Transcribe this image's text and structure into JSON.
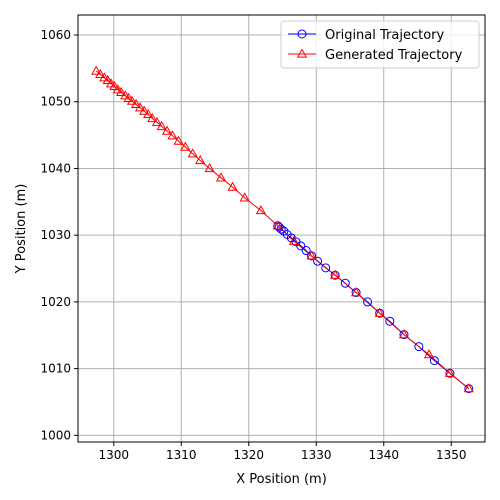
{
  "chart_data": {
    "type": "line",
    "xlabel": "X Position (m)",
    "ylabel": "Y Position (m)",
    "xlim": [
      1294.7,
      1355.0
    ],
    "ylim": [
      999.0,
      1063.0
    ],
    "xticks": [
      1300,
      1310,
      1320,
      1330,
      1340,
      1350
    ],
    "yticks": [
      1000,
      1010,
      1020,
      1030,
      1040,
      1050,
      1060
    ],
    "grid": true,
    "legend_position": "top-right",
    "series": [
      {
        "name": "Original Trajectory",
        "color": "#0000ff",
        "marker": "circle",
        "x": [
          1352.6,
          1349.8,
          1347.5,
          1345.2,
          1343.0,
          1340.9,
          1339.4,
          1337.6,
          1335.9,
          1334.3,
          1332.8,
          1331.4,
          1330.2,
          1329.3,
          1328.5,
          1327.7,
          1327.0,
          1326.3,
          1325.7,
          1325.2,
          1324.8,
          1324.5,
          1324.3
        ],
        "y": [
          1007.0,
          1009.3,
          1011.2,
          1013.3,
          1015.1,
          1017.1,
          1018.3,
          1020.0,
          1021.4,
          1022.8,
          1024.0,
          1025.1,
          1026.1,
          1026.9,
          1027.7,
          1028.4,
          1029.0,
          1029.6,
          1030.1,
          1030.6,
          1030.9,
          1031.2,
          1031.4
        ]
      },
      {
        "name": "Generated Trajectory",
        "color": "#ff0000",
        "marker": "triangle",
        "x": [
          1352.6,
          1349.8,
          1346.7,
          1343.0,
          1339.4,
          1335.9,
          1332.8,
          1329.3,
          1326.7,
          1324.3,
          1321.8,
          1319.4,
          1317.6,
          1315.9,
          1314.2,
          1312.8,
          1311.7,
          1310.6,
          1309.6,
          1308.7,
          1307.9,
          1307.1,
          1306.4,
          1305.7,
          1305.1,
          1304.5,
          1303.9,
          1303.3,
          1302.7,
          1302.2,
          1301.7,
          1301.1,
          1300.6,
          1300.1,
          1299.6,
          1299.1,
          1298.6,
          1298.0,
          1297.4
        ],
        "y": [
          1007.0,
          1009.3,
          1012.1,
          1015.1,
          1018.3,
          1021.4,
          1024.0,
          1026.9,
          1029.1,
          1031.4,
          1033.7,
          1035.6,
          1037.2,
          1038.6,
          1040.0,
          1041.2,
          1042.2,
          1043.2,
          1044.1,
          1044.9,
          1045.6,
          1046.3,
          1046.9,
          1047.5,
          1048.1,
          1048.6,
          1049.1,
          1049.6,
          1050.1,
          1050.5,
          1050.9,
          1051.4,
          1051.8,
          1052.3,
          1052.7,
          1053.2,
          1053.6,
          1054.1,
          1054.6
        ]
      }
    ]
  }
}
